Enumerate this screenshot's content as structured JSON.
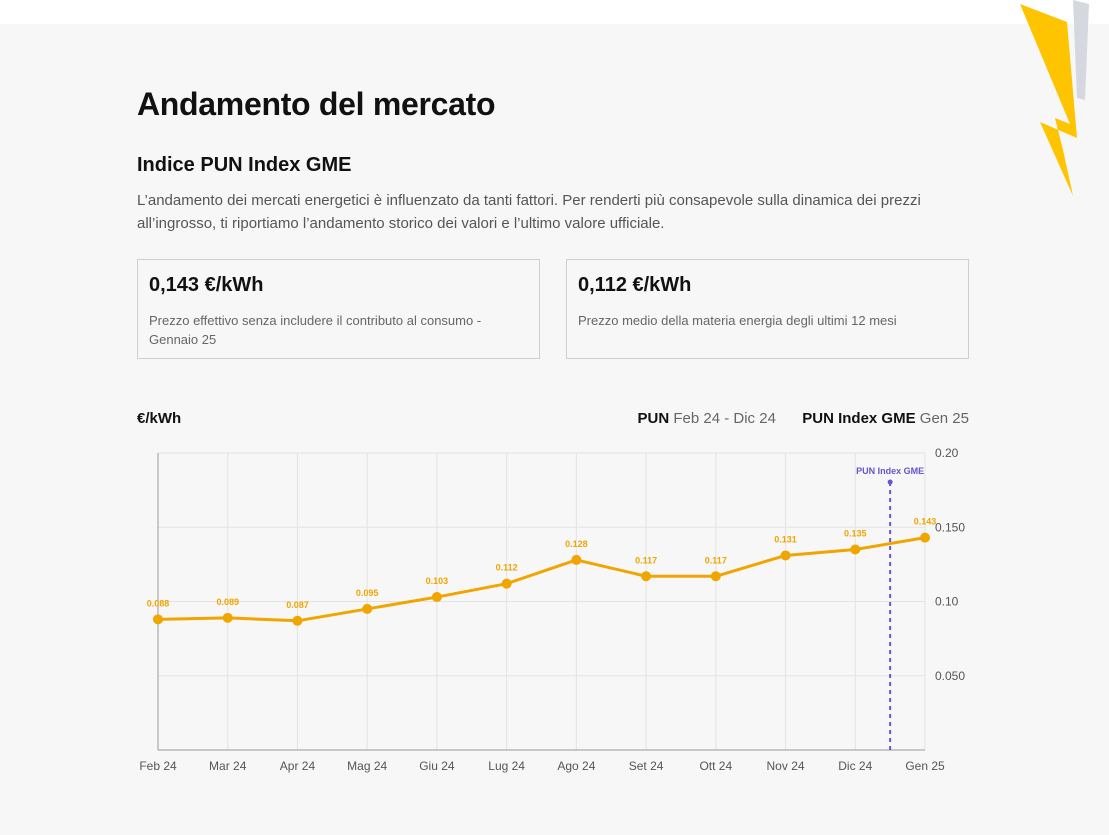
{
  "header": {
    "title": "Andamento del mercato",
    "subtitle": "Indice PUN Index GME",
    "intro": "L’andamento dei mercati energetici è influenzato da tanti fattori. Per renderti più consapevole sulla dinamica dei prezzi all’ingrosso, ti riportiamo l’andamento storico dei valori e l’ultimo valore ufficiale."
  },
  "cards": [
    {
      "value": "0,143 €/kWh",
      "description": "Prezzo effettivo senza includere il contributo al consumo - Gennaio 25"
    },
    {
      "value": "0,112 €/kWh",
      "description": "Prezzo medio della materia energia degli ultimi 12 mesi"
    }
  ],
  "legend": {
    "pun_name": "PUN",
    "pun_range": "Feb 24 - Dic 24",
    "gme_name": "PUN Index GME",
    "gme_range": "Gen 25"
  },
  "colors": {
    "line": "#f0a500",
    "marker": "#6655cc",
    "bolt_yellow": "#ffc400",
    "bolt_grey": "#d5d8de"
  },
  "chart_data": {
    "type": "line",
    "ylabel": "€/kWh",
    "categories": [
      "Feb 24",
      "Mar 24",
      "Apr 24",
      "Mag 24",
      "Giu 24",
      "Lug 24",
      "Ago 24",
      "Set 24",
      "Ott 24",
      "Nov 24",
      "Dic 24",
      "Gen 25"
    ],
    "values": [
      0.088,
      0.089,
      0.087,
      0.095,
      0.103,
      0.112,
      0.128,
      0.117,
      0.117,
      0.131,
      0.135,
      0.143
    ],
    "value_labels": [
      "0.088",
      "0.089",
      "0.087",
      "0.095",
      "0.103",
      "0.112",
      "0.128",
      "0.117",
      "0.117",
      "0.131",
      "0.135",
      "0.143"
    ],
    "y_ticks": [
      {
        "value": 0.05,
        "label": "0.050"
      },
      {
        "value": 0.1,
        "label": "0.10"
      },
      {
        "value": 0.15,
        "label": "0.150"
      },
      {
        "value": 0.2,
        "label": "0.20"
      }
    ],
    "ylim": [
      0,
      0.2
    ],
    "grid": true,
    "marker_label": "PUN Index GME",
    "marker_between": [
      "Dic 24",
      "Gen 25"
    ]
  }
}
